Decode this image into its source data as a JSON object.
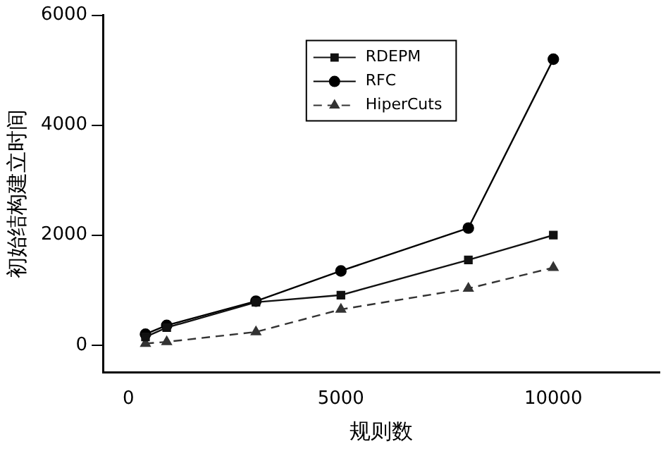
{
  "chart_data": {
    "type": "line",
    "xlabel": "规则数",
    "ylabel": "初始结构建立时间",
    "xlim": [
      -600,
      12500
    ],
    "xticks": [
      0,
      5000,
      10000
    ],
    "ylim": [
      -500,
      6000
    ],
    "yticks": [
      0,
      2000,
      4000,
      6000
    ],
    "grid": false,
    "legend": "top",
    "series": [
      {
        "name": "RDEPM",
        "color": "#111111",
        "marker": "square",
        "line_style": "solid",
        "x": [
          400,
          900,
          3000,
          5000,
          8000,
          10000
        ],
        "values": [
          150,
          320,
          780,
          910,
          1550,
          2000
        ]
      },
      {
        "name": "RFC",
        "color": "#000000",
        "marker": "circle",
        "line_style": "solid",
        "x": [
          400,
          900,
          3000,
          5000,
          8000,
          10000
        ],
        "values": [
          200,
          360,
          800,
          1350,
          2130,
          5200
        ]
      },
      {
        "name": "HiperCuts",
        "color": "#333333",
        "marker": "triangle",
        "line_style": "dashed",
        "x": [
          400,
          900,
          3000,
          5000,
          8000,
          10000
        ],
        "values": [
          30,
          60,
          240,
          650,
          1030,
          1410
        ]
      }
    ]
  }
}
